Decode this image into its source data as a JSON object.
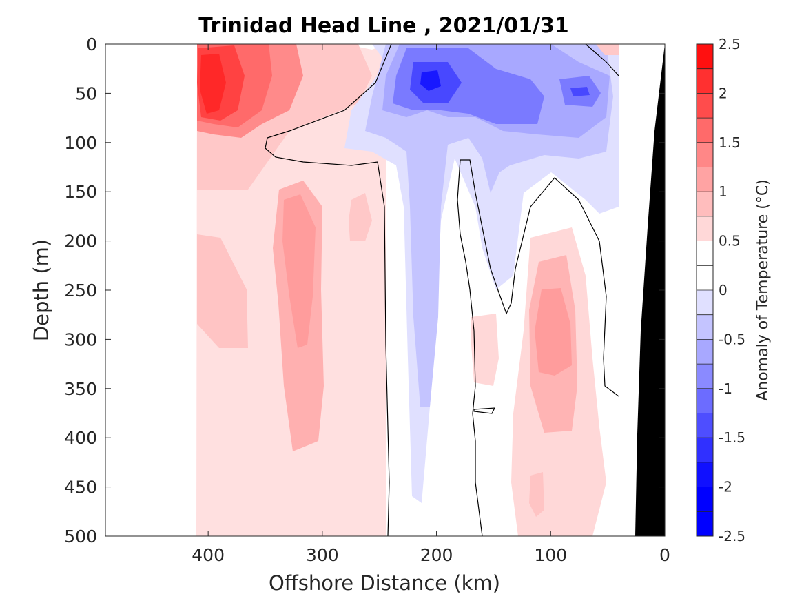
{
  "chart_data": {
    "type": "heatmap",
    "subtype": "filled-contour",
    "title": "Trinidad Head Line , 2021/01/31",
    "xlabel": "Offshore Distance (km)",
    "ylabel": "Depth (m)",
    "xlim": [
      490,
      0
    ],
    "x_reversed": true,
    "ylim": [
      0,
      500
    ],
    "y_reversed": true,
    "xticks": [
      "400",
      "300",
      "200",
      "100",
      "0"
    ],
    "xtick_values": [
      400,
      300,
      200,
      100,
      0
    ],
    "yticks": [
      "0",
      "50",
      "100",
      "150",
      "200",
      "250",
      "300",
      "350",
      "400",
      "450",
      "500"
    ],
    "ytick_values": [
      0,
      50,
      100,
      150,
      200,
      250,
      300,
      350,
      400,
      450,
      500
    ],
    "colorbar": {
      "label": "Anomaly of Temperature (°C)",
      "ticks": [
        "2.5",
        "2",
        "1.5",
        "1",
        "0.5",
        "0",
        "-0.5",
        "-1",
        "-1.5",
        "-2",
        "-2.5"
      ],
      "tick_values": [
        2.5,
        2,
        1.5,
        1,
        0.5,
        0,
        -0.5,
        -1,
        -1.5,
        -2,
        -2.5
      ],
      "levels": [
        2.5,
        2.25,
        2.0,
        1.75,
        1.5,
        1.25,
        1.0,
        0.75,
        0.5,
        0.25,
        0,
        -0.25,
        -0.5,
        -0.75,
        -1.0,
        -1.25,
        -1.5,
        -1.75,
        -2.0,
        -2.25,
        -2.5
      ],
      "colors": [
        "#ff1010",
        "#ff3030",
        "#ff4c4c",
        "#ff6a6a",
        "#ff8787",
        "#ffa3a3",
        "#ffbdbd",
        "#ffd8d8",
        "#ffffff",
        "#ffffff",
        "#e0e0ff",
        "#c4c4ff",
        "#a8a8ff",
        "#8a8aff",
        "#6c6cff",
        "#4e4eff",
        "#3030ff",
        "#1010ff",
        "#0000ff",
        "#0000ff"
      ]
    },
    "features": [
      {
        "name": "red-core-400km",
        "anomaly": 2.1,
        "x_range": [
          410,
          370
        ],
        "depth_range": [
          0,
          80
        ]
      },
      {
        "name": "warm-surface-offshore",
        "anomaly": 0.8,
        "x_range": [
          410,
          300
        ],
        "depth_range": [
          0,
          150
        ]
      },
      {
        "name": "warm-column-320km",
        "anomaly": 0.9,
        "x_range": [
          350,
          300
        ],
        "depth_range": [
          140,
          420
        ]
      },
      {
        "name": "warm-background-offshore",
        "anomaly": 0.3,
        "x_range": [
          410,
          245
        ],
        "depth_range": [
          0,
          500
        ]
      },
      {
        "name": "cold-core-210km",
        "anomaly": -2.3,
        "x_range": [
          220,
          195
        ],
        "depth_range": [
          20,
          50
        ]
      },
      {
        "name": "cold-core-80km",
        "anomaly": -1.8,
        "x_range": [
          95,
          60
        ],
        "depth_range": [
          30,
          70
        ]
      },
      {
        "name": "cold-surface-band",
        "anomaly": -1.2,
        "x_range": [
          260,
          40
        ],
        "depth_range": [
          0,
          150
        ]
      },
      {
        "name": "cold-column-210km",
        "anomaly": -0.6,
        "x_range": [
          240,
          180
        ],
        "depth_range": [
          100,
          480
        ]
      },
      {
        "name": "warm-column-100km",
        "anomaly": 0.9,
        "x_range": [
          125,
          70
        ],
        "depth_range": [
          190,
          420
        ]
      }
    ],
    "grid": false,
    "legend": "colorbar-right",
    "land_mask_color": "#000000"
  }
}
